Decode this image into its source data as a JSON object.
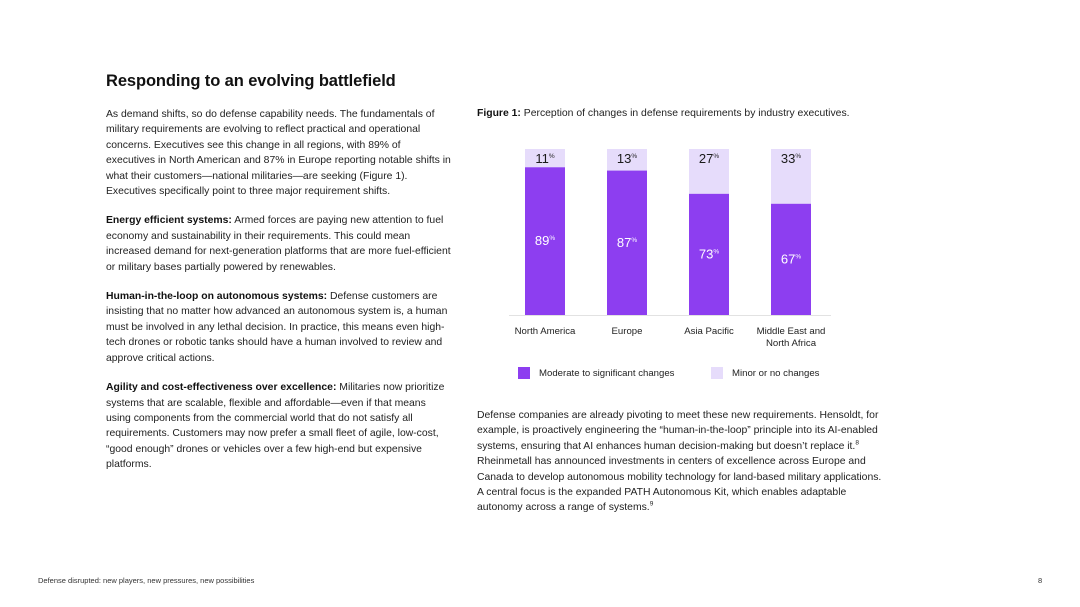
{
  "heading": "Responding to an evolving battlefield",
  "left": {
    "intro": "As demand shifts, so do defense capability needs. The fundamentals of military requirements are evolving to reflect practical and operational concerns. Executives see this change in all regions, with 89% of executives in North American and 87% in Europe reporting notable shifts in what their customers—national militaries—are seeking (Figure 1). Executives specifically point to three major requirement shifts.",
    "shift1_title": "Energy efficient systems:",
    "shift1_text": " Armed forces are paying new attention to fuel economy and sustainability in their requirements. This could mean increased demand for next-generation platforms that are more fuel-efficient or military bases partially powered by renewables.",
    "shift2_title": "Human-in-the-loop on autonomous systems:",
    "shift2_text": " Defense customers are insisting that no matter how advanced an autonomous system is, a human must be involved in any lethal decision. In practice, this means even high-tech drones or robotic tanks should have a human involved to review and approve critical actions.",
    "shift3_title": "Agility and cost-effectiveness over excellence:",
    "shift3_text": " Militaries now prioritize systems that are scalable, flexible and affordable—even if that means using components from the commercial world that do not satisfy all requirements. Customers may now prefer a small fleet of agile, low-cost, “good enough” drones or vehicles over a few high-end but expensive platforms."
  },
  "figure": {
    "label": "Figure 1:",
    "caption": " Perception of changes in defense requirements by industry executives."
  },
  "chart_data": {
    "type": "bar",
    "stacked": true,
    "title": "Perception of changes in defense requirements by industry executives.",
    "categories": [
      [
        "North America"
      ],
      [
        "Europe"
      ],
      [
        "Asia Pacific"
      ],
      [
        "Middle East and",
        "North Africa"
      ]
    ],
    "series": [
      {
        "name": "Moderate to significant changes",
        "values": [
          89,
          87,
          73,
          67
        ],
        "color": "#8d3ef0"
      },
      {
        "name": "Minor or no changes",
        "values": [
          11,
          13,
          27,
          33
        ],
        "color": "#e6dcfb"
      }
    ],
    "value_suffix": "%",
    "ylim": [
      0,
      100
    ],
    "legend_position": "bottom"
  },
  "right": {
    "para_a": "Defense companies are already pivoting to meet these new requirements. Hensoldt, for example, is proactively engineering the “human-in-the-loop” principle into its AI-enabled systems, ensuring that AI enhances human decision-making but doesn’t replace it.",
    "ref_a": "8",
    "para_b": " Rheinmetall has announced investments in centers of excellence across Europe and Canada to develop autonomous mobility technology for land-based military applications. A central focus is the expanded PATH Autonomous Kit, which enables adaptable autonomy across a range of systems.",
    "ref_b": "9"
  },
  "footer": {
    "text": "Defense disrupted: new players, new pressures, new possibilities",
    "page": "8"
  }
}
